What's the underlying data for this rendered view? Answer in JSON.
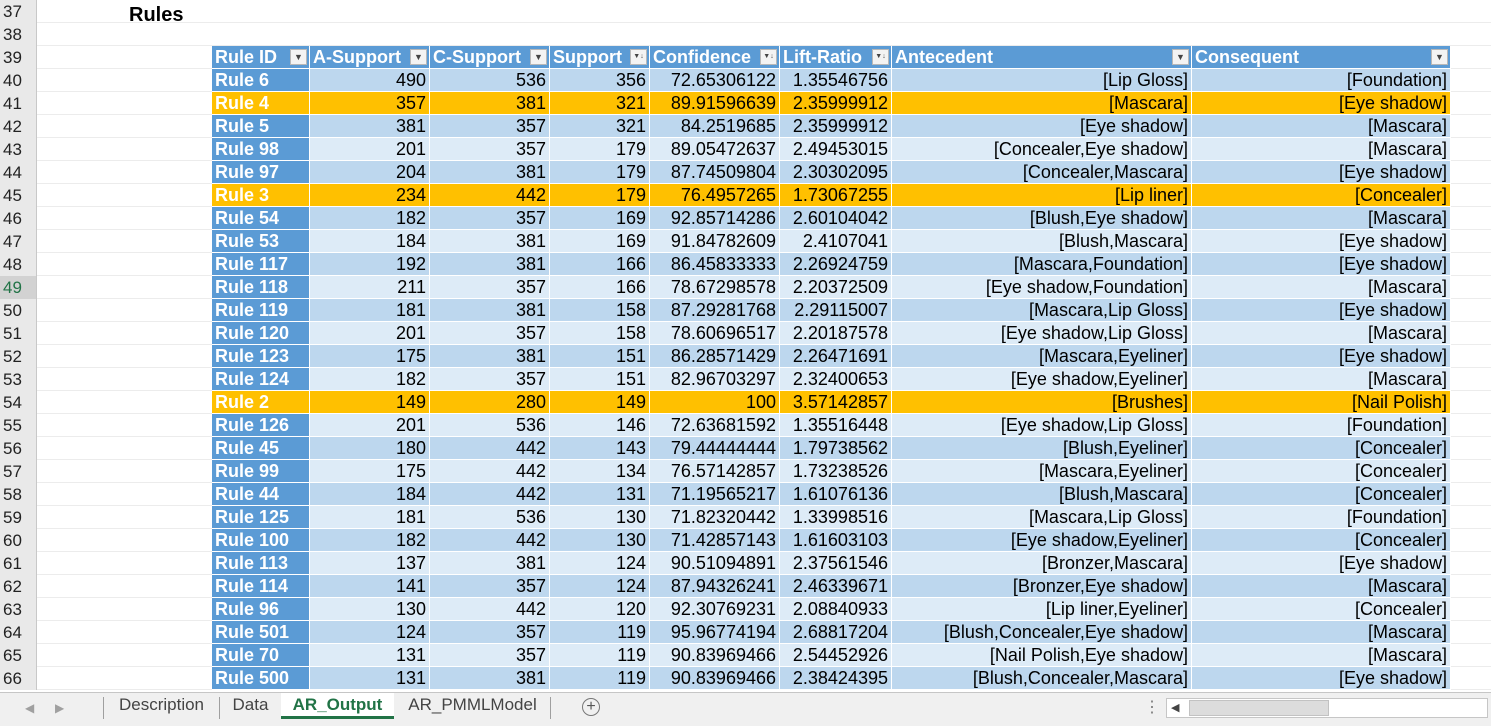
{
  "sheet": {
    "title_row": "37",
    "title": "Rules",
    "blank_row": "38",
    "header_row": "39",
    "selected_row": "49",
    "columns": [
      "Rule ID",
      "A-Support",
      "C-Support",
      "Support",
      "Confidence",
      "Lift-Ratio",
      "Antecedent",
      "Consequent"
    ],
    "filter_icons": [
      "dropdown-icon",
      "dropdown-icon",
      "dropdown-icon",
      "sort-desc-icon",
      "sort-desc-icon",
      "sort-desc-icon",
      "dropdown-icon",
      "dropdown-icon"
    ],
    "colors": {
      "header_blue": "#5b9bd5",
      "band_light": "#ddebf7",
      "band_dark": "#bdd7ee",
      "highlight": "#ffc000",
      "active_tab": "#217346"
    },
    "rows": [
      {
        "rn": "40",
        "id": "Rule 6",
        "a": "490",
        "c": "536",
        "s": "356",
        "conf": "72.65306122",
        "lift": "1.35546756",
        "ant": "[Lip Gloss]",
        "con": "[Foundation]",
        "hl": false
      },
      {
        "rn": "41",
        "id": "Rule 4",
        "a": "357",
        "c": "381",
        "s": "321",
        "conf": "89.91596639",
        "lift": "2.35999912",
        "ant": "[Mascara]",
        "con": "[Eye shadow]",
        "hl": true
      },
      {
        "rn": "42",
        "id": "Rule 5",
        "a": "381",
        "c": "357",
        "s": "321",
        "conf": "84.2519685",
        "lift": "2.35999912",
        "ant": "[Eye shadow]",
        "con": "[Mascara]",
        "hl": false
      },
      {
        "rn": "43",
        "id": "Rule 98",
        "a": "201",
        "c": "357",
        "s": "179",
        "conf": "89.05472637",
        "lift": "2.49453015",
        "ant": "[Concealer,Eye shadow]",
        "con": "[Mascara]",
        "hl": false
      },
      {
        "rn": "44",
        "id": "Rule 97",
        "a": "204",
        "c": "381",
        "s": "179",
        "conf": "87.74509804",
        "lift": "2.30302095",
        "ant": "[Concealer,Mascara]",
        "con": "[Eye shadow]",
        "hl": false
      },
      {
        "rn": "45",
        "id": "Rule 3",
        "a": "234",
        "c": "442",
        "s": "179",
        "conf": "76.4957265",
        "lift": "1.73067255",
        "ant": "[Lip liner]",
        "con": "[Concealer]",
        "hl": true
      },
      {
        "rn": "46",
        "id": "Rule 54",
        "a": "182",
        "c": "357",
        "s": "169",
        "conf": "92.85714286",
        "lift": "2.60104042",
        "ant": "[Blush,Eye shadow]",
        "con": "[Mascara]",
        "hl": false
      },
      {
        "rn": "47",
        "id": "Rule 53",
        "a": "184",
        "c": "381",
        "s": "169",
        "conf": "91.84782609",
        "lift": "2.4107041",
        "ant": "[Blush,Mascara]",
        "con": "[Eye shadow]",
        "hl": false
      },
      {
        "rn": "48",
        "id": "Rule 117",
        "a": "192",
        "c": "381",
        "s": "166",
        "conf": "86.45833333",
        "lift": "2.26924759",
        "ant": "[Mascara,Foundation]",
        "con": "[Eye shadow]",
        "hl": false
      },
      {
        "rn": "49",
        "id": "Rule 118",
        "a": "211",
        "c": "357",
        "s": "166",
        "conf": "78.67298578",
        "lift": "2.20372509",
        "ant": "[Eye shadow,Foundation]",
        "con": "[Mascara]",
        "hl": false
      },
      {
        "rn": "50",
        "id": "Rule 119",
        "a": "181",
        "c": "381",
        "s": "158",
        "conf": "87.29281768",
        "lift": "2.29115007",
        "ant": "[Mascara,Lip Gloss]",
        "con": "[Eye shadow]",
        "hl": false
      },
      {
        "rn": "51",
        "id": "Rule 120",
        "a": "201",
        "c": "357",
        "s": "158",
        "conf": "78.60696517",
        "lift": "2.20187578",
        "ant": "[Eye shadow,Lip Gloss]",
        "con": "[Mascara]",
        "hl": false
      },
      {
        "rn": "52",
        "id": "Rule 123",
        "a": "175",
        "c": "381",
        "s": "151",
        "conf": "86.28571429",
        "lift": "2.26471691",
        "ant": "[Mascara,Eyeliner]",
        "con": "[Eye shadow]",
        "hl": false
      },
      {
        "rn": "53",
        "id": "Rule 124",
        "a": "182",
        "c": "357",
        "s": "151",
        "conf": "82.96703297",
        "lift": "2.32400653",
        "ant": "[Eye shadow,Eyeliner]",
        "con": "[Mascara]",
        "hl": false
      },
      {
        "rn": "54",
        "id": "Rule 2",
        "a": "149",
        "c": "280",
        "s": "149",
        "conf": "100",
        "lift": "3.57142857",
        "ant": "[Brushes]",
        "con": "[Nail Polish]",
        "hl": true
      },
      {
        "rn": "55",
        "id": "Rule 126",
        "a": "201",
        "c": "536",
        "s": "146",
        "conf": "72.63681592",
        "lift": "1.35516448",
        "ant": "[Eye shadow,Lip Gloss]",
        "con": "[Foundation]",
        "hl": false
      },
      {
        "rn": "56",
        "id": "Rule 45",
        "a": "180",
        "c": "442",
        "s": "143",
        "conf": "79.44444444",
        "lift": "1.79738562",
        "ant": "[Blush,Eyeliner]",
        "con": "[Concealer]",
        "hl": false
      },
      {
        "rn": "57",
        "id": "Rule 99",
        "a": "175",
        "c": "442",
        "s": "134",
        "conf": "76.57142857",
        "lift": "1.73238526",
        "ant": "[Mascara,Eyeliner]",
        "con": "[Concealer]",
        "hl": false
      },
      {
        "rn": "58",
        "id": "Rule 44",
        "a": "184",
        "c": "442",
        "s": "131",
        "conf": "71.19565217",
        "lift": "1.61076136",
        "ant": "[Blush,Mascara]",
        "con": "[Concealer]",
        "hl": false
      },
      {
        "rn": "59",
        "id": "Rule 125",
        "a": "181",
        "c": "536",
        "s": "130",
        "conf": "71.82320442",
        "lift": "1.33998516",
        "ant": "[Mascara,Lip Gloss]",
        "con": "[Foundation]",
        "hl": false
      },
      {
        "rn": "60",
        "id": "Rule 100",
        "a": "182",
        "c": "442",
        "s": "130",
        "conf": "71.42857143",
        "lift": "1.61603103",
        "ant": "[Eye shadow,Eyeliner]",
        "con": "[Concealer]",
        "hl": false
      },
      {
        "rn": "61",
        "id": "Rule 113",
        "a": "137",
        "c": "381",
        "s": "124",
        "conf": "90.51094891",
        "lift": "2.37561546",
        "ant": "[Bronzer,Mascara]",
        "con": "[Eye shadow]",
        "hl": false
      },
      {
        "rn": "62",
        "id": "Rule 114",
        "a": "141",
        "c": "357",
        "s": "124",
        "conf": "87.94326241",
        "lift": "2.46339671",
        "ant": "[Bronzer,Eye shadow]",
        "con": "[Mascara]",
        "hl": false
      },
      {
        "rn": "63",
        "id": "Rule 96",
        "a": "130",
        "c": "442",
        "s": "120",
        "conf": "92.30769231",
        "lift": "2.08840933",
        "ant": "[Lip liner,Eyeliner]",
        "con": "[Concealer]",
        "hl": false
      },
      {
        "rn": "64",
        "id": "Rule 501",
        "a": "124",
        "c": "357",
        "s": "119",
        "conf": "95.96774194",
        "lift": "2.68817204",
        "ant": "[Blush,Concealer,Eye shadow]",
        "con": "[Mascara]",
        "hl": false
      },
      {
        "rn": "65",
        "id": "Rule 70",
        "a": "131",
        "c": "357",
        "s": "119",
        "conf": "90.83969466",
        "lift": "2.54452926",
        "ant": "[Nail Polish,Eye shadow]",
        "con": "[Mascara]",
        "hl": false
      },
      {
        "rn": "66",
        "id": "Rule 500",
        "a": "131",
        "c": "381",
        "s": "119",
        "conf": "90.83969466",
        "lift": "2.38424395",
        "ant": "[Blush,Concealer,Mascara]",
        "con": "[Eye shadow]",
        "hl": false
      }
    ]
  },
  "tabs": {
    "items": [
      "Description",
      "Data",
      "AR_Output",
      "AR_PMMLModel"
    ],
    "active": "AR_Output",
    "add_icon": "plus-circle-icon",
    "prev_icon": "chevron-left-icon",
    "next_icon": "chevron-right-icon",
    "more_icon": "ellipsis-icon"
  }
}
